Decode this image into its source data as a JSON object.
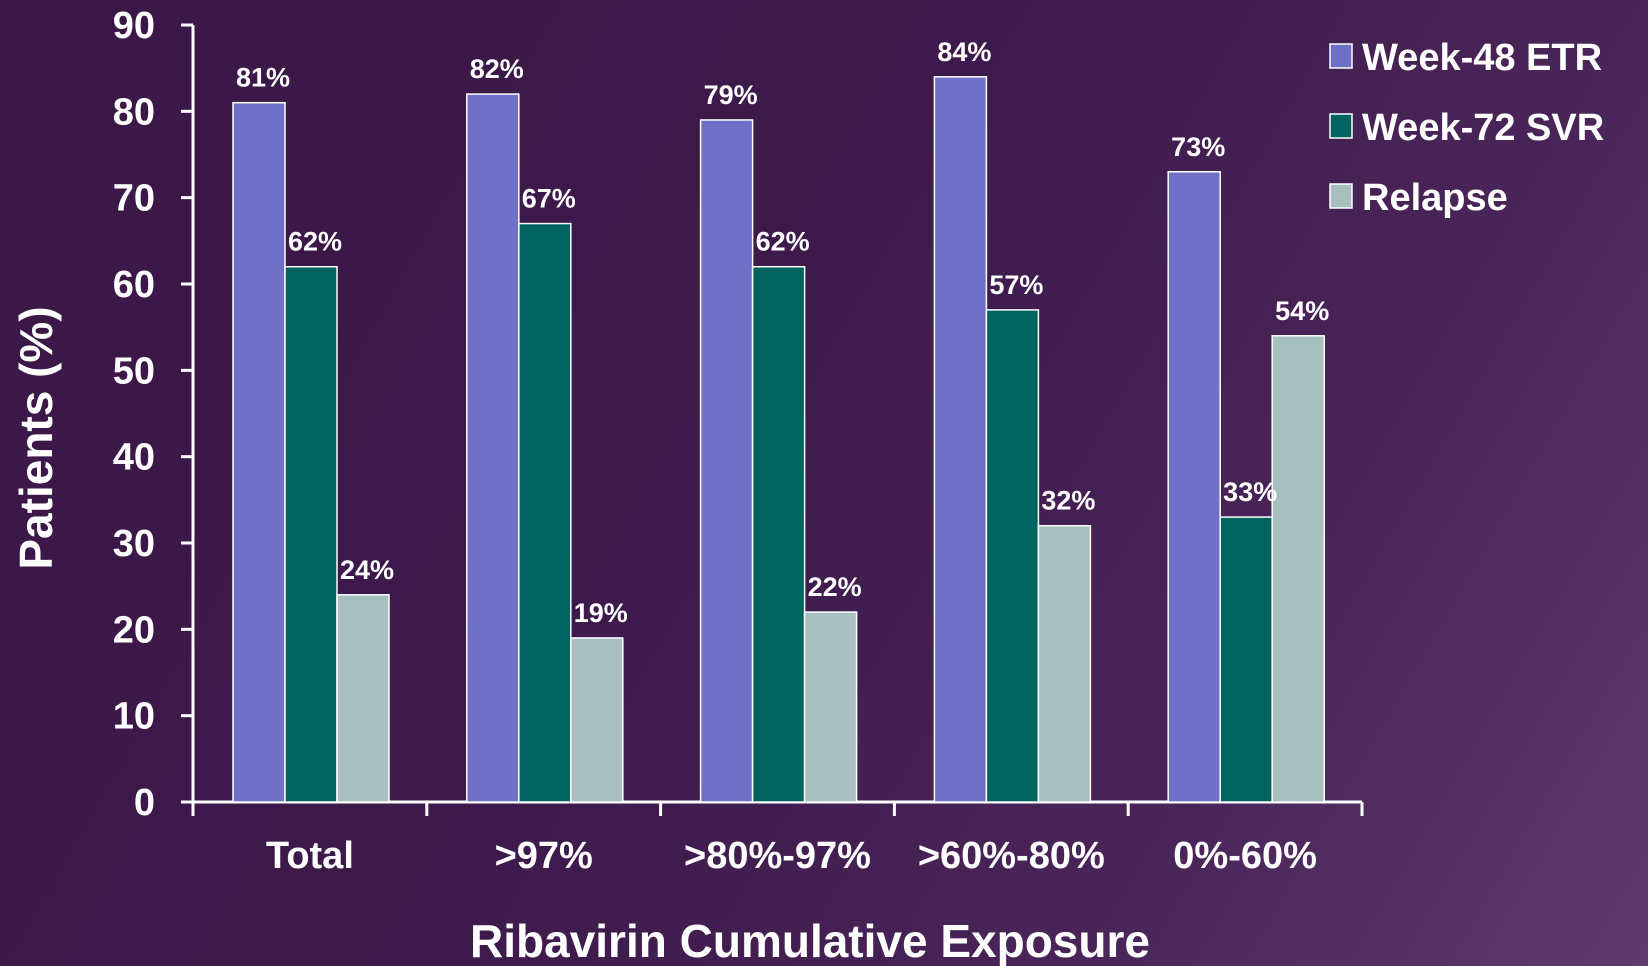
{
  "chart_data": {
    "type": "bar",
    "categories": [
      "Total",
      ">97%",
      ">80%-97%",
      ">60%-80%",
      "0%-60%"
    ],
    "series": [
      {
        "name": "Week-48 ETR",
        "values": [
          81,
          82,
          79,
          84,
          73
        ],
        "labels": [
          "81%",
          "82%",
          "79%",
          "84%",
          "73%"
        ],
        "color": "#6f70c7"
      },
      {
        "name": "Week-72 SVR",
        "values": [
          62,
          67,
          62,
          57,
          33
        ],
        "labels": [
          "62%",
          "67%",
          "62%",
          "57%",
          "33%"
        ],
        "color": "#00635f"
      },
      {
        "name": "Relapse",
        "values": [
          24,
          19,
          22,
          32,
          54
        ],
        "labels": [
          "24%",
          "19%",
          "22%",
          "32%",
          "54%"
        ],
        "color": "#a8bfbf"
      }
    ],
    "xlabel": "Ribavirin Cumulative Exposure",
    "ylabel": "Patients (%)",
    "ylim": [
      0,
      90
    ],
    "yticks": [
      0,
      10,
      20,
      30,
      40,
      50,
      60,
      70,
      80,
      90
    ],
    "grid": false,
    "legend": "top-right"
  }
}
